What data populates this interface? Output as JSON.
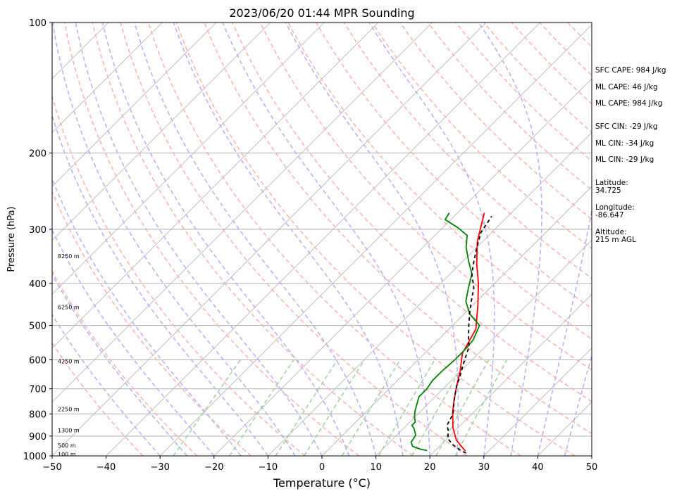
{
  "chart_data": {
    "type": "skew-t",
    "title": "2023/06/20 01:44 MPR Sounding",
    "xlabel": "Temperature (°C)",
    "ylabel": "Pressure (hPa)",
    "xlim": [
      -50,
      50
    ],
    "ylim": [
      1000,
      100
    ],
    "y_scale": "log",
    "x_ticks": [
      "−50",
      "−40",
      "−30",
      "−20",
      "−10",
      "0",
      "10",
      "20",
      "30",
      "40",
      "50"
    ],
    "y_ticks": [
      "100",
      "200",
      "300",
      "400",
      "500",
      "600",
      "700",
      "800",
      "900",
      "1000"
    ],
    "height_labels": [
      {
        "p": 346,
        "text": "8250 m"
      },
      {
        "p": 454,
        "text": "6250 m"
      },
      {
        "p": 605,
        "text": "4250 m"
      },
      {
        "p": 780,
        "text": "2250 m"
      },
      {
        "p": 872,
        "text": "1300 m"
      },
      {
        "p": 945,
        "text": "500 m"
      },
      {
        "p": 990,
        "text": "100 m"
      }
    ],
    "series": [
      {
        "color": "#ff0000",
        "points": [
          [
            25.7,
            975
          ],
          [
            22,
            920
          ],
          [
            19,
            860
          ],
          [
            16,
            790
          ],
          [
            14,
            740
          ],
          [
            12,
            690
          ],
          [
            10,
            640
          ],
          [
            7,
            580
          ],
          [
            5,
            510
          ],
          [
            1,
            450
          ],
          [
            -3,
            400
          ],
          [
            -7,
            360
          ],
          [
            -11,
            320
          ],
          [
            -15,
            275
          ]
        ]
      },
      {
        "color": "#008000",
        "points": [
          [
            18.5,
            972
          ],
          [
            17,
            965
          ],
          [
            15,
            950
          ],
          [
            14,
            930
          ],
          [
            13.5,
            895
          ],
          [
            12,
            865
          ],
          [
            11,
            850
          ],
          [
            11,
            835
          ],
          [
            10,
            815
          ],
          [
            9,
            790
          ],
          [
            8,
            760
          ],
          [
            7,
            730
          ],
          [
            7,
            700
          ],
          [
            6.5,
            670
          ],
          [
            6.5,
            640
          ],
          [
            6.8,
            600
          ],
          [
            6.8,
            570
          ],
          [
            6.5,
            540
          ],
          [
            5,
            500
          ],
          [
            1,
            470
          ],
          [
            -2,
            440
          ],
          [
            -4,
            410
          ],
          [
            -6,
            380
          ],
          [
            -9,
            355
          ],
          [
            -12,
            330
          ],
          [
            -14,
            310
          ],
          [
            -17,
            298
          ],
          [
            -21,
            285
          ],
          [
            -21.5,
            275
          ]
        ]
      },
      {
        "color": "#000000",
        "points": [
          [
            26.2,
            985
          ],
          [
            25,
            975
          ],
          [
            22,
            940
          ],
          [
            20,
            910
          ],
          [
            19,
            880
          ],
          [
            17.5,
            850
          ],
          [
            16.5,
            800
          ],
          [
            14,
            740
          ],
          [
            12,
            690
          ],
          [
            11,
            660
          ],
          [
            9,
            610
          ],
          [
            7,
            560
          ],
          [
            5,
            530
          ],
          [
            3,
            500
          ],
          [
            1,
            470
          ],
          [
            -1,
            440
          ],
          [
            -3,
            410
          ],
          [
            -6,
            380
          ],
          [
            -8,
            355
          ],
          [
            -10,
            330
          ],
          [
            -12,
            305
          ],
          [
            -13,
            280
          ]
        ]
      }
    ],
    "skew_line_color": "#b0b0b0",
    "dry_adiabat_color": "#ffb0b0",
    "moist_adiabat_color": "#b0b0ff",
    "mixing_ratio_color": "#a0d0a0",
    "info": {
      "sfc_cape": "SFC CAPE: 984 J/kg",
      "ml_cape": "ML CAPE: 46 J/kg",
      "ml_cape2": "ML CAPE: 984 J/kg",
      "sfc_cin": "SFC CIN: -29 J/kg",
      "ml_cin": "ML CIN: -34 J/kg",
      "ml_cin2": "ML CIN: -29 J/kg",
      "latitude": "Latitude:\n34.725",
      "longitude": "Longitude:\n-86.647",
      "altitude": "Altitude:\n215 m AGL"
    }
  }
}
